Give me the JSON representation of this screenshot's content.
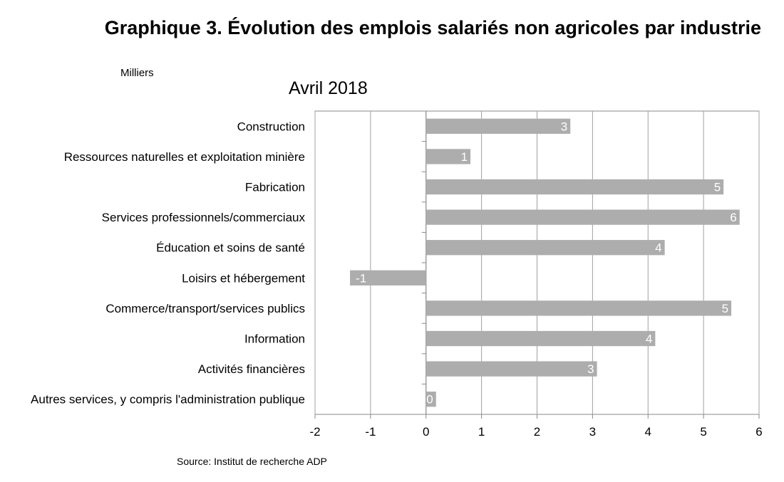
{
  "page": {
    "title": "Graphique 3. Évolution des emplois salariés non agricoles par industrie",
    "unit_label": "Milliers",
    "source": "Source: Institut de recherche ADP"
  },
  "chart_data": {
    "type": "bar",
    "orientation": "horizontal",
    "title": "Avril 2018",
    "xlabel": "",
    "ylabel": "",
    "xlim": [
      -2,
      6
    ],
    "x_ticks": [
      -2,
      -1,
      0,
      1,
      2,
      3,
      4,
      5,
      6
    ],
    "grid": true,
    "legend": "none",
    "bar_color": "#adadad",
    "categories": [
      "Construction",
      "Ressources naturelles et exploitation minière",
      "Fabrication",
      "Services professionnels/commerciaux",
      "Éducation et soins de santé",
      "Loisirs et hébergement",
      "Commerce/transport/services publics",
      "Information",
      "Activités financières",
      "Autres services, y compris l'administration publique"
    ],
    "values": [
      2.6,
      0.8,
      5.36,
      5.65,
      4.3,
      -1.37,
      5.5,
      4.13,
      3.08,
      0.18
    ],
    "data_labels": [
      "3",
      "1",
      "5",
      "6",
      "4",
      "-1",
      "5",
      "4",
      "3",
      "0"
    ]
  }
}
